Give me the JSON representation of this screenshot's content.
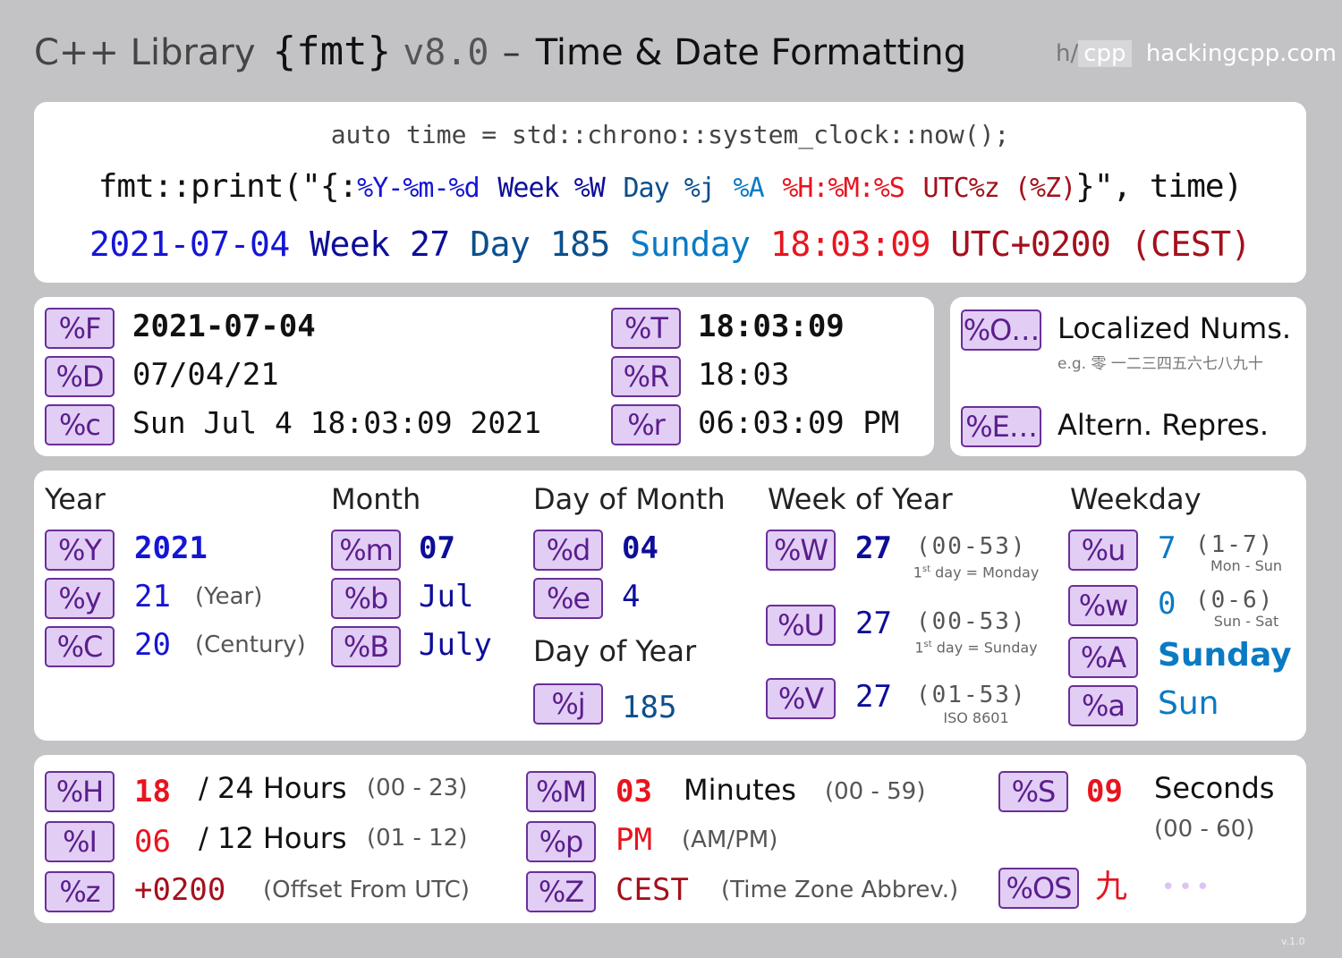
{
  "header": {
    "title_prefix": "C++ Library",
    "title_fmt": "{fmt}",
    "title_version": "v8.0",
    "title_dash": "–",
    "title_suffix": "Time & Date Formatting",
    "brand_h": "h/",
    "brand_cpp": "cpp",
    "brand_site": "hackingcpp.com"
  },
  "example": {
    "code_line": "auto time = std::chrono::system_clock::now();",
    "print_open": "fmt::print(\"{:",
    "spec_date": "%Y-%m-%d",
    "spec_week": "Week %W",
    "spec_day": "Day %j",
    "spec_weekday": "%A",
    "spec_time": "%H:%M:%S",
    "spec_tz": "UTC%z (%Z)",
    "print_close": "}\", time)",
    "out_date": "2021-07-04",
    "out_week_label": "Week",
    "out_week_val": "27",
    "out_day_label": "Day",
    "out_day_val": "185",
    "out_weekday": "Sunday",
    "out_time": "18:03:09",
    "out_tz": "UTC+0200 (CEST)"
  },
  "composite": {
    "F": {
      "tag": "%F",
      "value": "2021-07-04"
    },
    "D": {
      "tag": "%D",
      "value": "07/04/21"
    },
    "c": {
      "tag": "%c",
      "value": "Sun Jul 4 18:03:09 2021"
    },
    "T": {
      "tag": "%T",
      "value": "18:03:09"
    },
    "R": {
      "tag": "%R",
      "value": "18:03"
    },
    "r": {
      "tag": "%r",
      "value": "06:03:09 PM"
    }
  },
  "modifiers": {
    "O": {
      "tag": "%O…",
      "label": "Localized Nums.",
      "example": "e.g. 零 一二三四五六七八九十"
    },
    "E": {
      "tag": "%E…",
      "label": "Altern. Repres."
    }
  },
  "year": {
    "heading": "Year",
    "Y": {
      "tag": "%Y",
      "value": "2021"
    },
    "y": {
      "tag": "%y",
      "value": "21",
      "note": "(Year)"
    },
    "C": {
      "tag": "%C",
      "value": "20",
      "note": "(Century)"
    }
  },
  "month": {
    "heading": "Month",
    "m": {
      "tag": "%m",
      "value": "07"
    },
    "b": {
      "tag": "%b",
      "value": "Jul"
    },
    "B": {
      "tag": "%B",
      "value": "July"
    }
  },
  "day_of_month": {
    "heading": "Day of Month",
    "d": {
      "tag": "%d",
      "value": "04"
    },
    "e": {
      "tag": "%e",
      "value": "4"
    }
  },
  "day_of_year": {
    "heading": "Day of Year",
    "j": {
      "tag": "%j",
      "value": "185"
    }
  },
  "week_of_year": {
    "heading": "Week of Year",
    "W": {
      "tag": "%W",
      "value": "27",
      "range": "(00-53)",
      "note_sup": "st",
      "note_pre": "1",
      "note_post": " day = Monday"
    },
    "U": {
      "tag": "%U",
      "value": "27",
      "range": "(00-53)",
      "note_sup": "st",
      "note_pre": "1",
      "note_post": " day = Sunday"
    },
    "V": {
      "tag": "%V",
      "value": "27",
      "range": "(01-53)",
      "note": "ISO 8601"
    }
  },
  "weekday": {
    "heading": "Weekday",
    "u": {
      "tag": "%u",
      "value": "7",
      "range": "(1-7)",
      "note": "Mon - Sun"
    },
    "w": {
      "tag": "%w",
      "value": "0",
      "range": "(0-6)",
      "note": "Sun - Sat"
    },
    "A": {
      "tag": "%A",
      "value": "Sunday"
    },
    "a": {
      "tag": "%a",
      "value": "Sun"
    }
  },
  "time": {
    "H": {
      "tag": "%H",
      "value": "18",
      "label": "/ 24 Hours",
      "range": "(00 - 23)"
    },
    "I": {
      "tag": "%I",
      "value": "06",
      "label": "/ 12 Hours",
      "range": "(01 - 12)"
    },
    "z": {
      "tag": "%z",
      "value": "+0200",
      "note": "(Offset From UTC)"
    },
    "M": {
      "tag": "%M",
      "value": "03",
      "label": "Minutes",
      "range": "(00 - 59)"
    },
    "p": {
      "tag": "%p",
      "value": "PM",
      "note": "(AM/PM)"
    },
    "Z": {
      "tag": "%Z",
      "value": "CEST",
      "note": "(Time Zone Abbrev.)"
    },
    "S": {
      "tag": "%S",
      "value": "09",
      "label": "Seconds",
      "range": "(00 - 60)"
    },
    "OS": {
      "tag": "%OS",
      "value": "九",
      "more": "•••"
    }
  },
  "footer": {
    "version": "v.1.0"
  },
  "colors": {
    "background": "#c3c3c6",
    "tag_fill": "#e2cdf4",
    "tag_border": "#6a2f98",
    "blue_date": "#1515d6",
    "blue_week": "#0d0d9a",
    "blue_day": "#0b4f8c",
    "blue_weekday": "#0a7ac4",
    "red_time": "#e8141e",
    "red_tz": "#a4101c"
  }
}
